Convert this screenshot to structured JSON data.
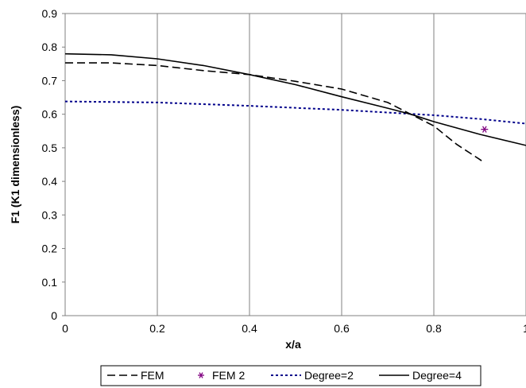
{
  "chart_data": {
    "type": "line",
    "title": "",
    "xlabel": "x/a",
    "ylabel": "F1 (K1 dimensionless)",
    "xlim": [
      0,
      1
    ],
    "ylim": [
      0,
      0.9
    ],
    "xticks": [
      "0",
      "0.2",
      "0.4",
      "0.6",
      "0.8",
      "1"
    ],
    "yticks": [
      "0",
      "0.1",
      "0.2",
      "0.3",
      "0.4",
      "0.5",
      "0.6",
      "0.7",
      "0.8",
      "0.9"
    ],
    "grid": "vertical",
    "legend_position": "bottom",
    "series": [
      {
        "name": "FEM",
        "style": "dashed",
        "color": "#000000",
        "x": [
          0.0,
          0.1,
          0.2,
          0.3,
          0.4,
          0.5,
          0.6,
          0.7,
          0.75,
          0.8,
          0.85,
          0.9,
          0.91
        ],
        "y": [
          0.753,
          0.753,
          0.745,
          0.73,
          0.718,
          0.698,
          0.675,
          0.635,
          0.6,
          0.565,
          0.51,
          0.465,
          0.455
        ]
      },
      {
        "name": "FEM 2",
        "style": "marker",
        "marker": "asterisk",
        "color": "#800080",
        "x": [
          0.91
        ],
        "y": [
          0.555
        ]
      },
      {
        "name": "Degree=2",
        "style": "dotted",
        "color": "#00008b",
        "x": [
          0.0,
          0.2,
          0.4,
          0.6,
          0.8,
          0.9,
          1.0
        ],
        "y": [
          0.638,
          0.635,
          0.625,
          0.613,
          0.597,
          0.586,
          0.572
        ]
      },
      {
        "name": "Degree=4",
        "style": "solid",
        "color": "#000000",
        "x": [
          0.0,
          0.1,
          0.2,
          0.3,
          0.4,
          0.5,
          0.6,
          0.7,
          0.75,
          0.8,
          0.9,
          1.0
        ],
        "y": [
          0.78,
          0.777,
          0.765,
          0.745,
          0.718,
          0.688,
          0.652,
          0.618,
          0.6,
          0.578,
          0.54,
          0.507
        ]
      }
    ]
  }
}
